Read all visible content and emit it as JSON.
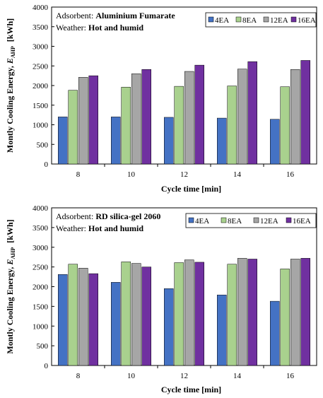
{
  "colors": {
    "4EA": "#4472c4",
    "8EA": "#a9d18e",
    "12EA": "#a6a6a6",
    "16EA": "#7030a0",
    "bar_stroke": "#000000"
  },
  "chart_data": [
    {
      "type": "bar",
      "categories": [
        "8",
        "10",
        "12",
        "14",
        "16"
      ],
      "series": [
        {
          "name": "4EA",
          "values": [
            1200,
            1200,
            1190,
            1170,
            1140
          ]
        },
        {
          "name": "8EA",
          "values": [
            1880,
            1960,
            1980,
            1990,
            1970
          ]
        },
        {
          "name": "12EA",
          "values": [
            2210,
            2300,
            2360,
            2420,
            2410
          ]
        },
        {
          "name": "16EA",
          "values": [
            2250,
            2410,
            2520,
            2610,
            2640
          ]
        }
      ],
      "xlabel": "Cycle time [min]",
      "ylabel_prefix": "Montly Cooling Energy, ",
      "ylabel_symbol": "E",
      "ylabel_subscript": "AHP",
      "ylabel_unit": "[kWh]",
      "ylim": [
        0,
        4000
      ],
      "yticks": [
        "0",
        "500",
        "1000",
        "1500",
        "2000",
        "2500",
        "3000",
        "3500",
        "4000"
      ],
      "legend_position": "top-right",
      "annotation": {
        "adsorbent_label": "Adsorbent: ",
        "adsorbent_value": "Aluminium Fumarate",
        "weather_label": "Weather: ",
        "weather_value": "Hot and humid"
      },
      "grid": false
    },
    {
      "type": "bar",
      "categories": [
        "8",
        "10",
        "12",
        "14",
        "16"
      ],
      "series": [
        {
          "name": "4EA",
          "values": [
            2310,
            2110,
            1950,
            1790,
            1630
          ]
        },
        {
          "name": "8EA",
          "values": [
            2570,
            2630,
            2610,
            2570,
            2450
          ]
        },
        {
          "name": "12EA",
          "values": [
            2470,
            2590,
            2680,
            2720,
            2700
          ]
        },
        {
          "name": "16EA",
          "values": [
            2330,
            2500,
            2620,
            2700,
            2720
          ]
        }
      ],
      "xlabel": "Cycle time [min]",
      "ylabel_prefix": "Montly Cooling Energy, ",
      "ylabel_symbol": "E",
      "ylabel_subscript": "AHP",
      "ylabel_unit": "[kWh]",
      "ylim": [
        0,
        4000
      ],
      "yticks": [
        "0",
        "500",
        "1000",
        "1500",
        "2000",
        "2500",
        "3000",
        "3500",
        "4000"
      ],
      "legend_position": "top-right",
      "annotation": {
        "adsorbent_label": "Adsorbent: ",
        "adsorbent_value": "RD silica-gel 2060",
        "weather_label": "Weather: ",
        "weather_value": "Hot and humid"
      },
      "grid": false
    }
  ]
}
